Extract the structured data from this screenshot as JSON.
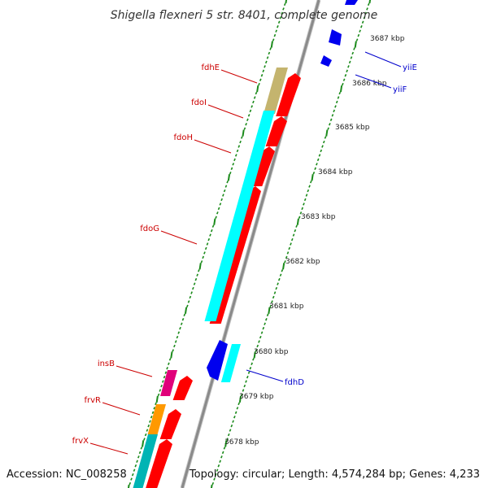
{
  "title": "Shigella flexneri 5 str. 8401, complete genome",
  "footer": {
    "accession": "Accession: NC_008258",
    "topology": "Topology: circular; Length: 4,574,284 bp; Genes: 4,233"
  },
  "colors": {
    "backbone": "#8a8a8a",
    "tick": "#1a8a1a",
    "cds_forward": "#ff0000",
    "cds_reverse": "#0000ee",
    "rna_cyan": "#00ffff",
    "label_red": "#cc0000",
    "label_blue": "#0000cc",
    "fdhE_olive": "#c4b46e",
    "insB_magenta": "#e0007a",
    "frvR_orange": "#ff9900",
    "frvX_teal": "#00b4b4"
  },
  "scale_labels": [
    "3687 kbp",
    "3686 kbp",
    "3685 kbp",
    "3684 kbp",
    "3683 kbp",
    "3682 kbp",
    "3681 kbp",
    "3680 kbp",
    "3679 kbp",
    "3678 kbp"
  ],
  "genes_left": [
    "fdhE",
    "fdoI",
    "fdoH",
    "fdoG",
    "insB",
    "frvR",
    "frvX"
  ],
  "genes_right": [
    "yiiE",
    "yiiF",
    "fdhD"
  ]
}
